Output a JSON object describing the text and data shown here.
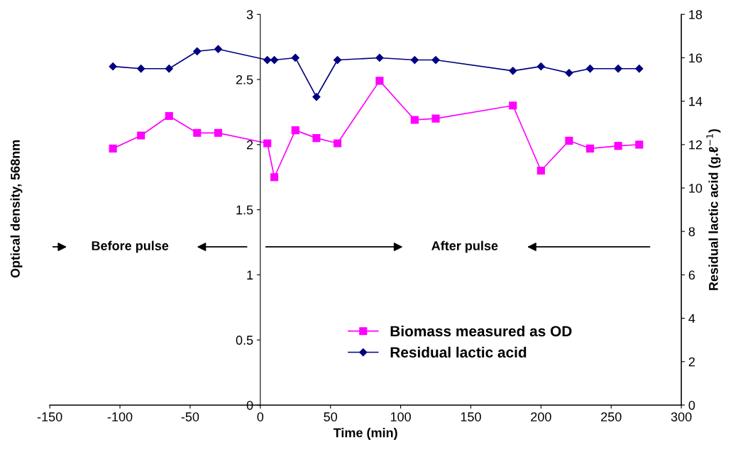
{
  "chart_data": {
    "type": "line",
    "xlabel": "Time (min)",
    "ylabel": "Optical density, 568nm",
    "y2label": "Residual lactic acid (g.ℓ$^{−1}$)",
    "xlim": [
      -150,
      300
    ],
    "xticks": [
      -150,
      -100,
      -50,
      0,
      50,
      100,
      150,
      200,
      250,
      300
    ],
    "ylim": [
      0,
      3
    ],
    "yticks": [
      0,
      0.5,
      1,
      1.5,
      2,
      2.5,
      3
    ],
    "y2lim": [
      0,
      18
    ],
    "y2ticks": [
      0,
      2,
      4,
      6,
      8,
      10,
      12,
      14,
      16,
      18
    ],
    "grid": false,
    "legend": "bottom",
    "series": [
      {
        "name": "Biomass measured as OD",
        "color": "#ff00ff",
        "marker": "square",
        "x": [
          -105,
          -85,
          -65,
          -45,
          -30,
          5,
          10,
          25,
          40,
          55,
          85,
          110,
          125,
          180,
          200,
          220,
          235,
          255,
          270
        ],
        "values": [
          1.97,
          2.07,
          2.22,
          2.09,
          2.09,
          2.01,
          1.75,
          2.11,
          2.05,
          2.01,
          2.49,
          2.19,
          2.2,
          2.3,
          1.8,
          2.03,
          1.97,
          1.99,
          2.0
        ]
      },
      {
        "name": "Residual lactic acid",
        "color": "#000080",
        "marker": "diamond",
        "axis": "y2",
        "x": [
          -105,
          -85,
          -65,
          -45,
          -30,
          5,
          10,
          25,
          40,
          55,
          85,
          110,
          125,
          180,
          200,
          220,
          235,
          255,
          270
        ],
        "values": [
          15.6,
          15.5,
          15.5,
          16.3,
          16.4,
          15.9,
          15.9,
          16.0,
          14.2,
          15.9,
          16.0,
          15.9,
          15.9,
          15.4,
          15.6,
          15.3,
          15.5,
          15.5,
          15.5
        ]
      }
    ],
    "annotations": [
      "Before pulse",
      "After pulse"
    ]
  }
}
